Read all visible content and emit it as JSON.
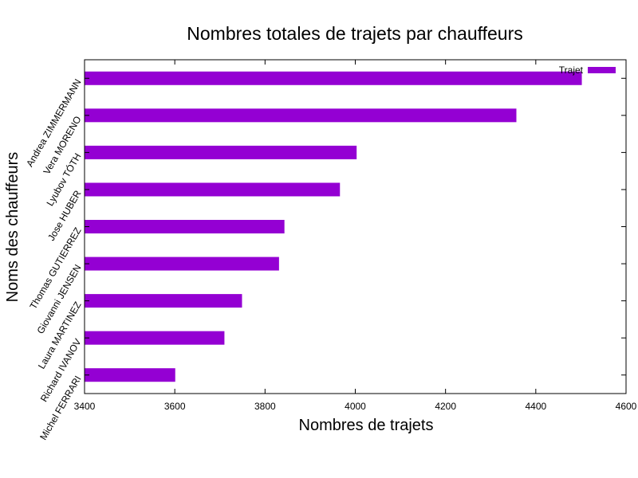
{
  "chart_data": {
    "type": "bar",
    "orientation": "horizontal",
    "title": "Nombres totales de trajets par chauffeurs",
    "xlabel": "Nombres de trajets",
    "ylabel": "Noms des chauffeurs",
    "xlim": [
      3400,
      4600
    ],
    "xticks": [
      "3400",
      "3600",
      "3800",
      "4000",
      "4200",
      "4400",
      "4600"
    ],
    "categories": [
      "Andrea ZIMMERMANN",
      "Vera MORENO",
      "Lyubov TÓTH",
      "Jose HUBER",
      "Thomas GUTIERREZ",
      "Giovanni JENSEN",
      "Laura MARTINEZ",
      "Richard IVANOV",
      "Michel FERRARI"
    ],
    "series": [
      {
        "name": "Trajet",
        "values": [
          4502,
          4357,
          4003,
          3966,
          3843,
          3831,
          3749,
          3710,
          3601
        ]
      }
    ],
    "grid": false,
    "legend_position": "top-right",
    "colors": {
      "bar": "#9400d3",
      "axis": "#000000"
    }
  }
}
